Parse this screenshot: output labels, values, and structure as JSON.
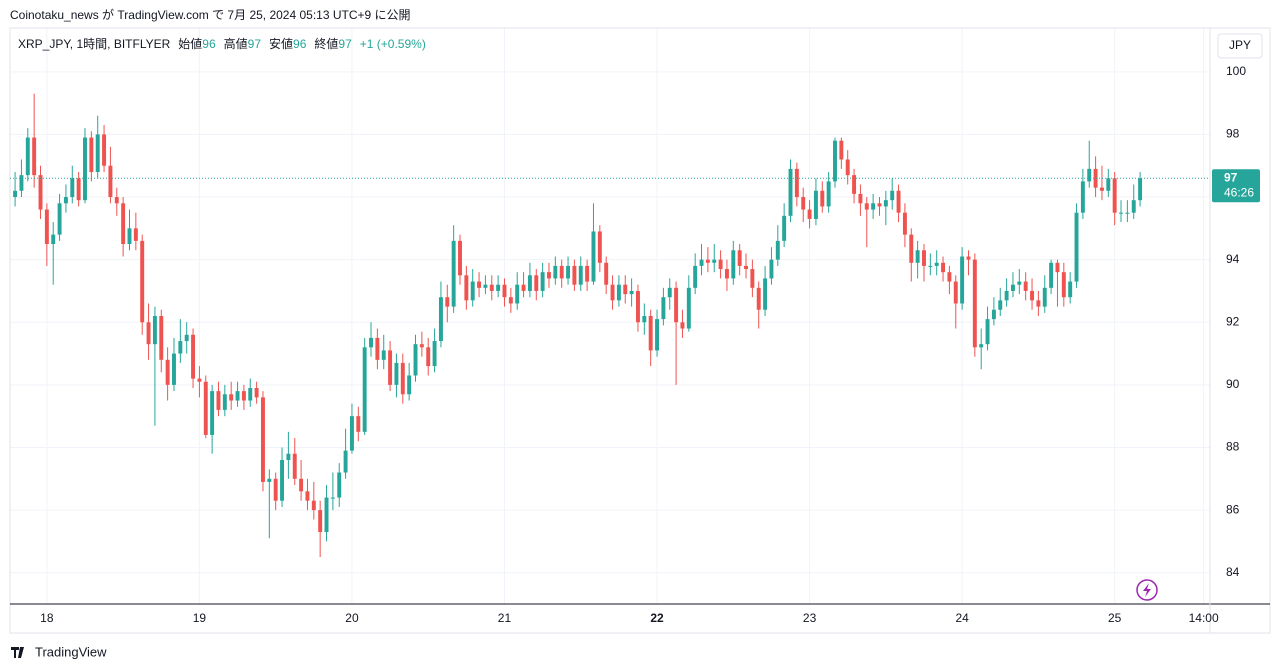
{
  "header": {
    "published": "Coinotaku_news が TradingView.com で 7月 25, 2024 05:13 UTC+9 に公開"
  },
  "footer": {
    "brand": "TradingView"
  },
  "chart_data": {
    "type": "candlestick",
    "legend": {
      "symbol": "XRP_JPY, 1時間, BITFLYER",
      "open_label": "始値",
      "open": "96",
      "high_label": "高値",
      "high": "97",
      "low_label": "安値",
      "low": "96",
      "close_label": "終値",
      "close": "97",
      "change": "+1 (+0.59%)"
    },
    "currency": "JPY",
    "last_price_label": "97",
    "countdown": "46:26",
    "up_color": "#26a69a",
    "down_color": "#ef5350",
    "grid": true,
    "ylim": [
      83,
      101.4
    ],
    "yticks": [
      84,
      86,
      88,
      90,
      92,
      94,
      96,
      98,
      100
    ],
    "xlim": [
      -0.8,
      188
    ],
    "xticks": [
      {
        "value": 5,
        "label": "18"
      },
      {
        "value": 29,
        "label": "19"
      },
      {
        "value": 53,
        "label": "20"
      },
      {
        "value": 77,
        "label": "21"
      },
      {
        "value": 101,
        "label": "22"
      },
      {
        "value": 125,
        "label": "23"
      },
      {
        "value": 149,
        "label": "24"
      },
      {
        "value": 173,
        "label": "25"
      },
      {
        "value": 187,
        "label": "14:00"
      }
    ],
    "ohlc": [
      [
        96.0,
        96.8,
        95.7,
        96.2
      ],
      [
        96.2,
        97.2,
        96.0,
        96.7
      ],
      [
        96.7,
        98.2,
        96.5,
        97.9
      ],
      [
        97.9,
        99.3,
        96.3,
        96.7
      ],
      [
        96.7,
        97.0,
        95.3,
        95.6
      ],
      [
        95.6,
        95.8,
        93.8,
        94.5
      ],
      [
        94.5,
        95.2,
        93.2,
        94.8
      ],
      [
        94.8,
        96.1,
        94.6,
        95.8
      ],
      [
        95.8,
        96.4,
        95.5,
        96.0
      ],
      [
        96.0,
        97.0,
        95.8,
        96.6
      ],
      [
        96.6,
        96.8,
        95.7,
        95.9
      ],
      [
        95.9,
        98.2,
        95.8,
        97.9
      ],
      [
        97.9,
        98.1,
        96.5,
        96.8
      ],
      [
        96.8,
        98.6,
        96.6,
        98.0
      ],
      [
        98.0,
        98.3,
        96.8,
        97.0
      ],
      [
        97.0,
        97.6,
        95.8,
        96.0
      ],
      [
        96.0,
        96.3,
        95.4,
        95.8
      ],
      [
        95.8,
        96.0,
        94.1,
        94.5
      ],
      [
        94.5,
        95.6,
        94.3,
        95.0
      ],
      [
        95.0,
        95.5,
        94.3,
        94.6
      ],
      [
        94.6,
        94.8,
        91.6,
        92.0
      ],
      [
        92.0,
        92.6,
        90.8,
        91.3
      ],
      [
        91.3,
        92.5,
        88.7,
        92.2
      ],
      [
        92.2,
        92.4,
        90.4,
        90.8
      ],
      [
        90.8,
        91.2,
        89.5,
        90.0
      ],
      [
        90.0,
        91.5,
        89.8,
        91.0
      ],
      [
        91.0,
        92.1,
        90.7,
        91.4
      ],
      [
        91.4,
        92.0,
        91.0,
        91.6
      ],
      [
        91.6,
        91.8,
        89.9,
        90.2
      ],
      [
        90.2,
        90.6,
        89.6,
        90.1
      ],
      [
        90.1,
        90.3,
        88.3,
        88.4
      ],
      [
        88.4,
        90.0,
        87.8,
        89.8
      ],
      [
        89.8,
        90.1,
        89.0,
        89.2
      ],
      [
        89.2,
        90.0,
        89.0,
        89.7
      ],
      [
        89.7,
        90.1,
        89.2,
        89.5
      ],
      [
        89.5,
        90.1,
        89.3,
        89.8
      ],
      [
        89.8,
        90.0,
        89.2,
        89.5
      ],
      [
        89.5,
        90.2,
        89.3,
        89.9
      ],
      [
        89.9,
        90.1,
        89.4,
        89.6
      ],
      [
        89.6,
        89.8,
        86.6,
        86.9
      ],
      [
        86.9,
        87.3,
        85.1,
        87.0
      ],
      [
        87.0,
        87.2,
        86.0,
        86.3
      ],
      [
        86.3,
        88.0,
        86.1,
        87.6
      ],
      [
        87.6,
        88.5,
        87.0,
        87.8
      ],
      [
        87.8,
        88.3,
        86.8,
        87.0
      ],
      [
        87.0,
        87.6,
        86.3,
        86.6
      ],
      [
        86.6,
        87.0,
        86.0,
        86.3
      ],
      [
        86.3,
        86.9,
        85.7,
        86.0
      ],
      [
        86.0,
        86.3,
        84.5,
        85.3
      ],
      [
        85.3,
        86.8,
        85.0,
        86.4
      ],
      [
        86.4,
        87.2,
        86.0,
        86.4
      ],
      [
        86.4,
        87.5,
        86.1,
        87.2
      ],
      [
        87.2,
        88.6,
        87.0,
        87.9
      ],
      [
        87.9,
        89.4,
        87.8,
        89.0
      ],
      [
        89.0,
        89.3,
        88.2,
        88.5
      ],
      [
        88.5,
        91.5,
        88.4,
        91.2
      ],
      [
        91.2,
        92.0,
        90.9,
        91.5
      ],
      [
        91.5,
        91.8,
        90.5,
        90.8
      ],
      [
        90.8,
        91.6,
        90.5,
        91.1
      ],
      [
        91.1,
        91.4,
        89.8,
        90.0
      ],
      [
        90.0,
        91.0,
        89.6,
        90.7
      ],
      [
        90.7,
        91.0,
        89.4,
        89.7
      ],
      [
        89.7,
        90.7,
        89.5,
        90.3
      ],
      [
        90.3,
        91.6,
        90.1,
        91.3
      ],
      [
        91.3,
        91.7,
        90.9,
        91.2
      ],
      [
        91.2,
        91.5,
        90.3,
        90.6
      ],
      [
        90.6,
        91.8,
        90.4,
        91.4
      ],
      [
        91.4,
        93.3,
        91.2,
        92.8
      ],
      [
        92.8,
        93.2,
        92.0,
        92.5
      ],
      [
        92.5,
        95.1,
        92.3,
        94.6
      ],
      [
        94.6,
        94.8,
        93.2,
        93.5
      ],
      [
        93.5,
        93.8,
        92.4,
        92.7
      ],
      [
        92.7,
        93.7,
        92.5,
        93.3
      ],
      [
        93.3,
        93.6,
        92.8,
        93.1
      ],
      [
        93.1,
        93.5,
        92.9,
        93.2
      ],
      [
        93.2,
        93.5,
        92.7,
        93.0
      ],
      [
        93.0,
        93.5,
        92.8,
        93.2
      ],
      [
        93.2,
        93.4,
        92.5,
        92.8
      ],
      [
        92.8,
        93.1,
        92.3,
        92.6
      ],
      [
        92.6,
        93.6,
        92.4,
        93.2
      ],
      [
        93.2,
        93.6,
        92.8,
        93.0
      ],
      [
        93.0,
        93.9,
        92.8,
        93.5
      ],
      [
        93.5,
        93.7,
        92.7,
        93.0
      ],
      [
        93.0,
        93.9,
        92.8,
        93.6
      ],
      [
        93.6,
        93.9,
        93.1,
        93.4
      ],
      [
        93.4,
        94.1,
        93.2,
        93.8
      ],
      [
        93.8,
        94.0,
        93.1,
        93.4
      ],
      [
        93.4,
        94.1,
        93.2,
        93.8
      ],
      [
        93.8,
        94.0,
        93.0,
        93.2
      ],
      [
        93.2,
        94.1,
        93.0,
        93.8
      ],
      [
        93.8,
        94.0,
        93.0,
        93.3
      ],
      [
        93.3,
        95.8,
        93.2,
        94.9
      ],
      [
        94.9,
        95.1,
        93.6,
        93.9
      ],
      [
        93.9,
        94.1,
        92.9,
        93.2
      ],
      [
        93.2,
        93.5,
        92.4,
        92.7
      ],
      [
        92.7,
        93.5,
        92.5,
        93.2
      ],
      [
        93.2,
        93.5,
        92.6,
        92.9
      ],
      [
        92.9,
        93.4,
        92.5,
        93.0
      ],
      [
        93.0,
        93.2,
        91.7,
        92.0
      ],
      [
        92.0,
        92.6,
        91.6,
        92.2
      ],
      [
        92.2,
        92.4,
        90.6,
        91.1
      ],
      [
        91.1,
        92.4,
        90.9,
        92.1
      ],
      [
        92.1,
        93.1,
        91.9,
        92.8
      ],
      [
        92.8,
        93.4,
        92.4,
        93.1
      ],
      [
        93.1,
        93.3,
        90.0,
        92.0
      ],
      [
        92.0,
        92.4,
        91.5,
        91.8
      ],
      [
        91.8,
        93.5,
        91.7,
        93.1
      ],
      [
        93.1,
        94.2,
        92.9,
        93.8
      ],
      [
        93.8,
        94.5,
        93.5,
        94.0
      ],
      [
        94.0,
        94.4,
        93.6,
        93.9
      ],
      [
        93.9,
        94.5,
        93.6,
        94.0
      ],
      [
        94.0,
        94.3,
        93.4,
        93.7
      ],
      [
        93.7,
        94.0,
        93.0,
        93.4
      ],
      [
        93.4,
        94.6,
        93.2,
        94.3
      ],
      [
        94.3,
        94.5,
        93.5,
        93.8
      ],
      [
        93.8,
        94.2,
        93.4,
        93.7
      ],
      [
        93.7,
        94.0,
        92.8,
        93.1
      ],
      [
        93.1,
        93.3,
        91.8,
        92.4
      ],
      [
        92.4,
        93.8,
        92.2,
        93.4
      ],
      [
        93.4,
        94.4,
        93.2,
        94.0
      ],
      [
        94.0,
        95.1,
        93.8,
        94.6
      ],
      [
        94.6,
        95.8,
        94.4,
        95.4
      ],
      [
        95.4,
        97.2,
        95.2,
        96.9
      ],
      [
        96.9,
        97.1,
        95.7,
        96.0
      ],
      [
        96.0,
        96.3,
        95.2,
        95.6
      ],
      [
        95.6,
        95.9,
        95.0,
        95.3
      ],
      [
        95.3,
        96.6,
        95.1,
        96.2
      ],
      [
        96.2,
        96.5,
        95.5,
        95.7
      ],
      [
        95.7,
        96.8,
        95.5,
        96.5
      ],
      [
        96.5,
        97.9,
        96.3,
        97.8
      ],
      [
        97.8,
        97.9,
        96.9,
        97.2
      ],
      [
        97.2,
        97.5,
        96.4,
        96.7
      ],
      [
        96.7,
        96.9,
        95.8,
        96.1
      ],
      [
        96.1,
        96.4,
        95.4,
        95.8
      ],
      [
        95.8,
        96.0,
        94.4,
        95.6
      ],
      [
        95.6,
        96.1,
        95.3,
        95.8
      ],
      [
        95.8,
        96.0,
        95.4,
        95.7
      ],
      [
        95.7,
        96.2,
        95.1,
        95.9
      ],
      [
        95.9,
        96.6,
        95.6,
        96.2
      ],
      [
        96.2,
        96.4,
        95.2,
        95.5
      ],
      [
        95.5,
        95.8,
        94.4,
        94.8
      ],
      [
        94.8,
        95.0,
        93.3,
        93.9
      ],
      [
        93.9,
        94.6,
        93.4,
        94.3
      ],
      [
        94.3,
        94.5,
        93.3,
        93.8
      ],
      [
        93.8,
        94.2,
        93.5,
        93.8
      ],
      [
        93.8,
        94.3,
        93.5,
        93.9
      ],
      [
        93.9,
        94.1,
        93.3,
        93.6
      ],
      [
        93.6,
        93.8,
        92.9,
        93.3
      ],
      [
        93.3,
        93.5,
        91.8,
        92.6
      ],
      [
        92.6,
        94.4,
        92.4,
        94.1
      ],
      [
        94.1,
        94.3,
        93.5,
        94.0
      ],
      [
        94.0,
        94.2,
        90.9,
        91.2
      ],
      [
        91.2,
        91.8,
        90.5,
        91.3
      ],
      [
        91.3,
        92.5,
        91.1,
        92.1
      ],
      [
        92.1,
        92.8,
        91.9,
        92.4
      ],
      [
        92.4,
        93.1,
        92.2,
        92.7
      ],
      [
        92.7,
        93.4,
        92.5,
        93.0
      ],
      [
        93.0,
        93.6,
        92.8,
        93.2
      ],
      [
        93.2,
        93.7,
        92.9,
        93.3
      ],
      [
        93.3,
        93.6,
        92.7,
        93.0
      ],
      [
        93.0,
        93.4,
        92.4,
        92.7
      ],
      [
        92.7,
        93.0,
        92.2,
        92.5
      ],
      [
        92.5,
        93.5,
        92.3,
        93.1
      ],
      [
        93.1,
        94.0,
        92.9,
        93.9
      ],
      [
        93.9,
        94.0,
        92.5,
        93.6
      ],
      [
        93.6,
        93.9,
        92.5,
        92.8
      ],
      [
        92.8,
        93.6,
        92.6,
        93.3
      ],
      [
        93.3,
        95.8,
        93.1,
        95.5
      ],
      [
        95.5,
        96.9,
        95.3,
        96.5
      ],
      [
        96.5,
        97.8,
        96.3,
        96.9
      ],
      [
        96.9,
        97.3,
        96.0,
        96.3
      ],
      [
        96.3,
        97.0,
        95.9,
        96.2
      ],
      [
        96.2,
        96.9,
        96.0,
        96.6
      ],
      [
        96.6,
        96.8,
        95.1,
        95.5
      ],
      [
        95.5,
        95.9,
        95.2,
        95.5
      ],
      [
        95.5,
        95.9,
        95.2,
        95.5
      ],
      [
        95.5,
        96.4,
        95.3,
        95.9
      ],
      [
        95.9,
        96.8,
        95.7,
        96.6
      ]
    ]
  }
}
